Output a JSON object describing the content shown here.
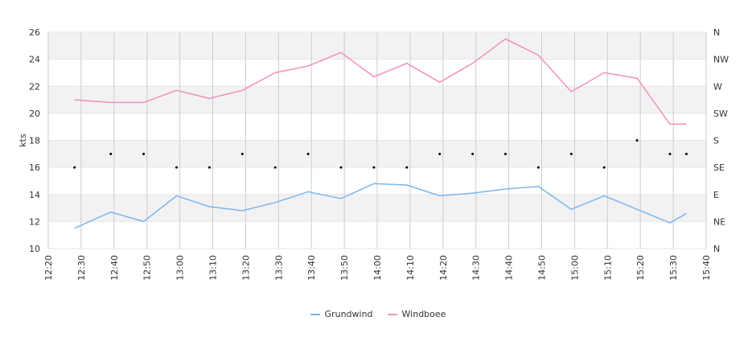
{
  "chart_data": {
    "type": "line",
    "ylabel": "kts",
    "ylim": [
      10,
      26
    ],
    "yticks": [
      10,
      12,
      14,
      16,
      18,
      20,
      22,
      24,
      26
    ],
    "xlim": [
      "12:20",
      "15:40"
    ],
    "xticks": [
      "12:20",
      "12:30",
      "12:40",
      "12:50",
      "13:00",
      "13:10",
      "13:20",
      "13:30",
      "13:40",
      "13:50",
      "14:00",
      "14:10",
      "14:20",
      "14:30",
      "14:40",
      "14:50",
      "15:00",
      "15:10",
      "15:20",
      "15:30",
      "15:40"
    ],
    "right_axis_labels": [
      "N",
      "NE",
      "E",
      "SE",
      "S",
      "SW",
      "W",
      "NW",
      "N"
    ],
    "colors": {
      "Grundwind": "#7cb5ec",
      "Windboee": "#f38fbe",
      "dots": "#000000"
    },
    "series": [
      {
        "name": "Grundwind",
        "x": [
          "12:28",
          "12:39",
          "12:49",
          "12:59",
          "13:09",
          "13:19",
          "13:29",
          "13:39",
          "13:49",
          "13:59",
          "14:09",
          "14:19",
          "14:29",
          "14:39",
          "14:49",
          "14:59",
          "15:09",
          "15:19",
          "15:29",
          "15:34"
        ],
        "values": [
          11.5,
          12.7,
          12.0,
          13.9,
          13.1,
          12.8,
          13.4,
          14.2,
          13.7,
          14.8,
          14.7,
          13.9,
          14.1,
          14.4,
          14.6,
          12.9,
          13.9,
          12.9,
          11.9,
          12.6
        ]
      },
      {
        "name": "Windboee",
        "x": [
          "12:28",
          "12:39",
          "12:49",
          "12:59",
          "13:09",
          "13:19",
          "13:29",
          "13:39",
          "13:49",
          "13:59",
          "14:09",
          "14:19",
          "14:29",
          "14:39",
          "14:49",
          "14:59",
          "15:09",
          "15:19",
          "15:29",
          "15:34"
        ],
        "values": [
          21.0,
          20.8,
          20.8,
          21.7,
          21.1,
          21.7,
          23.0,
          23.5,
          24.5,
          22.7,
          23.7,
          22.3,
          23.7,
          25.5,
          24.3,
          21.6,
          23.0,
          22.6,
          19.2,
          19.2
        ]
      }
    ],
    "direction_dots": {
      "x": [
        "12:28",
        "12:39",
        "12:49",
        "12:59",
        "13:09",
        "13:19",
        "13:29",
        "13:39",
        "13:49",
        "13:59",
        "14:09",
        "14:19",
        "14:29",
        "14:39",
        "14:49",
        "14:59",
        "15:09",
        "15:19",
        "15:29",
        "15:34"
      ],
      "values": [
        16,
        17,
        17,
        16,
        16,
        17,
        16,
        17,
        16,
        16,
        16,
        17,
        17,
        17,
        16,
        17,
        16,
        18,
        17,
        17
      ]
    },
    "legend": [
      "Grundwind",
      "Windboee"
    ],
    "legend_position": "bottom",
    "grid": true
  }
}
